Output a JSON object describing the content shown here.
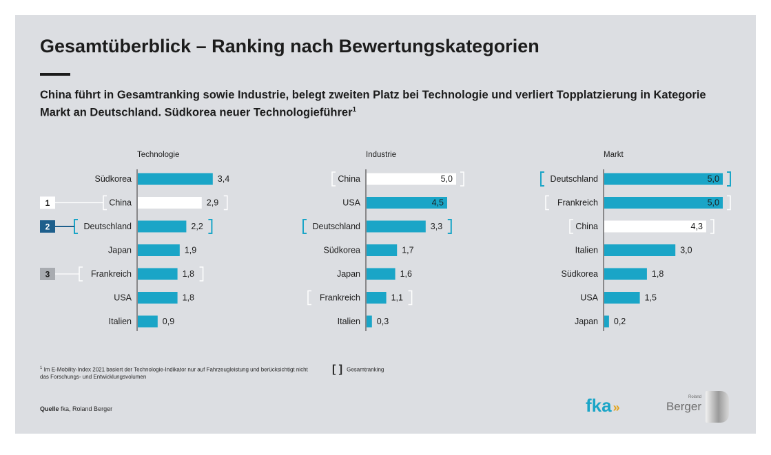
{
  "title": "Gesamtüberblick – Ranking nach Bewertungskategorien",
  "subtitle": "China führt in Gesamtranking sowie Industrie, belegt zweiten Platz bei Technologie und verliert Topplatzierung in Kategorie Markt an Deutschland. Südkorea neuer Technologieführer",
  "subtitle_footnote_mark": "1",
  "footnote_mark": "1",
  "footnote": "Im E-Mobility-Index 2021 basiert der Technologie-Indikator nur auf Fahrzeugleistung und berücksichtigt nicht das Forschungs- und Entwicklungsvolumen",
  "legend": {
    "symbol": "[ ]",
    "label": "Gesamtranking"
  },
  "source": {
    "label": "Quelle",
    "text": "fka, Roland Berger"
  },
  "logos": {
    "fka": "fka",
    "fka_arrows": "»",
    "rb_small": "Roland",
    "rb_big": "Berger"
  },
  "colors": {
    "bar": "#1aa5c7",
    "highlight_bar": "#ffffff",
    "axis": "#333333",
    "bracket": "#1aa5c7",
    "bracket_light": "#ffffff",
    "rank1": "#ffffff",
    "rank2": "#1e5f8c",
    "rank3": "#a8abb0"
  },
  "chart_data": [
    {
      "type": "bar",
      "title": "Technologie",
      "categories": [
        "Südkorea",
        "China",
        "Deutschland",
        "Japan",
        "Frankreich",
        "USA",
        "Italien"
      ],
      "values": [
        3.4,
        2.9,
        2.2,
        1.9,
        1.8,
        1.8,
        0.9
      ],
      "value_labels": [
        "3,4",
        "2,9",
        "2,2",
        "1,9",
        "1,8",
        "1,8",
        "0,9"
      ],
      "highlight": "China",
      "brackets": {
        "China": "light",
        "Deutschland": "blue",
        "Frankreich": "light"
      },
      "overall_ranking": [
        {
          "rank": "1",
          "country": "China"
        },
        {
          "rank": "2",
          "country": "Deutschland"
        },
        {
          "rank": "3",
          "country": "Frankreich"
        }
      ],
      "xlim": [
        0,
        5
      ]
    },
    {
      "type": "bar",
      "title": "Industrie",
      "categories": [
        "China",
        "USA",
        "Deutschland",
        "Südkorea",
        "Japan",
        "Frankreich",
        "Italien"
      ],
      "values": [
        5.0,
        4.5,
        3.3,
        1.7,
        1.6,
        1.1,
        0.3
      ],
      "value_labels": [
        "5,0",
        "4,5",
        "3,3",
        "1,7",
        "1,6",
        "1,1",
        "0,3"
      ],
      "highlight": "China",
      "brackets": {
        "China": "light",
        "Deutschland": "blue",
        "Frankreich": "light"
      },
      "xlim": [
        0,
        5
      ]
    },
    {
      "type": "bar",
      "title": "Markt",
      "categories": [
        "Deutschland",
        "Frankreich",
        "China",
        "Italien",
        "Südkorea",
        "USA",
        "Japan"
      ],
      "values": [
        5.0,
        5.0,
        4.3,
        3.0,
        1.8,
        1.5,
        0.2
      ],
      "value_labels": [
        "5,0",
        "5,0",
        "4,3",
        "3,0",
        "1,8",
        "1,5",
        "0,2"
      ],
      "highlight": "China",
      "brackets": {
        "Deutschland": "blue",
        "Frankreich": "light",
        "China": "light"
      },
      "xlim": [
        0,
        5
      ]
    }
  ]
}
